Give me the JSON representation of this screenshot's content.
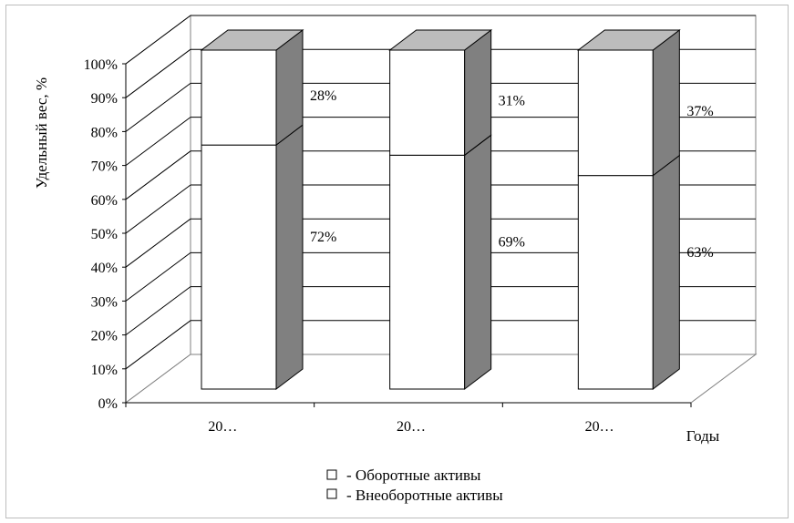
{
  "chart_data": {
    "type": "bar",
    "stacked": true,
    "three_d": true,
    "title": "",
    "xlabel": "Годы",
    "ylabel": "Удельный вес, %",
    "ylim": [
      0,
      100
    ],
    "y_ticks": [
      "0%",
      "10%",
      "20%",
      "30%",
      "40%",
      "50%",
      "60%",
      "70%",
      "80%",
      "90%",
      "100%"
    ],
    "categories": [
      "20…",
      "20…",
      "20…"
    ],
    "series": [
      {
        "name": "Оборотные активы",
        "values": [
          28,
          31,
          37
        ],
        "labels": [
          "28%",
          "31%",
          "37%"
        ],
        "color": "#ffffff"
      },
      {
        "name": "Внеоборотные активы",
        "values": [
          72,
          69,
          63
        ],
        "labels": [
          "72%",
          "69%",
          "63%"
        ],
        "color": "#ffffff"
      }
    ],
    "legend": {
      "position": "bottom",
      "items": [
        "- Оборотные активы",
        "- Внеоборотные активы"
      ]
    },
    "colors": {
      "face": "#ffffff",
      "side": "#808080",
      "top": "#bcbcbc",
      "wall": "#ffffff",
      "grid": "#000000"
    },
    "grid": true
  }
}
